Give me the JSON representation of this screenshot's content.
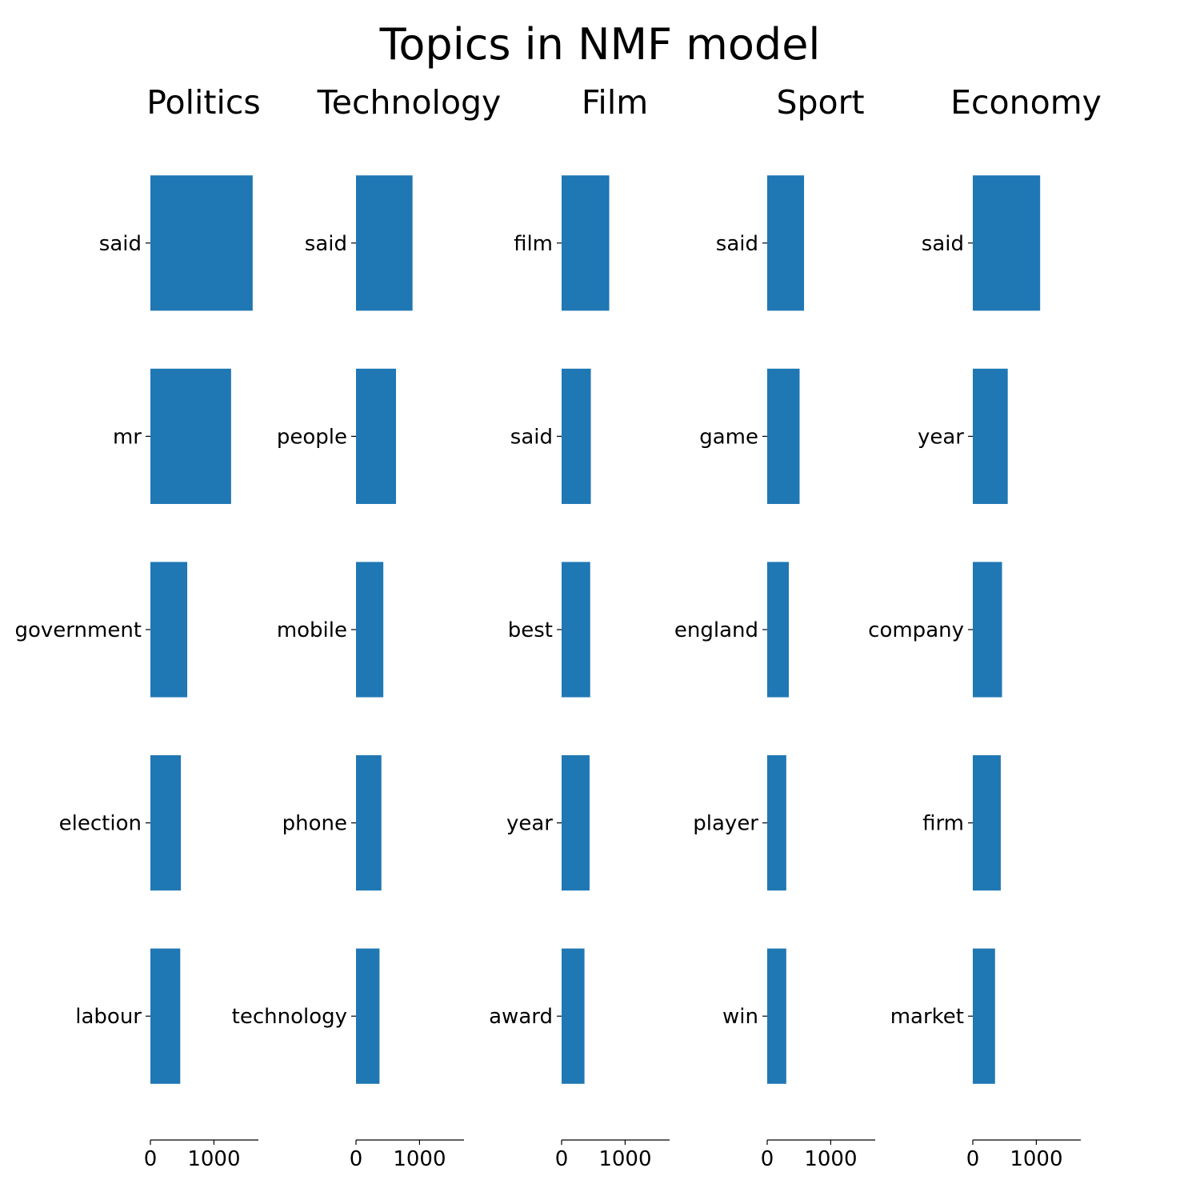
{
  "chart_data": {
    "type": "bar",
    "orientation": "horizontal",
    "title": "Topics in NMF model",
    "color": "#1f77b4",
    "xlim": [
      0,
      1700
    ],
    "xticks": [
      0,
      1000
    ],
    "xtick_labels": [
      "0",
      "1000"
    ],
    "panels": [
      {
        "title": "Politics",
        "categories": [
          "said",
          "mr",
          "government",
          "election",
          "labour"
        ],
        "values": [
          1610,
          1270,
          580,
          480,
          470
        ]
      },
      {
        "title": "Technology",
        "categories": [
          "said",
          "people",
          "mobile",
          "phone",
          "technology"
        ],
        "values": [
          890,
          630,
          430,
          400,
          370
        ]
      },
      {
        "title": "Film",
        "categories": [
          "film",
          "said",
          "best",
          "year",
          "award"
        ],
        "values": [
          750,
          460,
          450,
          440,
          360
        ]
      },
      {
        "title": "Sport",
        "categories": [
          "said",
          "game",
          "england",
          "player",
          "win"
        ],
        "values": [
          580,
          510,
          340,
          300,
          300
        ]
      },
      {
        "title": "Economy",
        "categories": [
          "said",
          "year",
          "company",
          "firm",
          "market"
        ],
        "values": [
          1060,
          550,
          460,
          440,
          350
        ]
      }
    ]
  }
}
